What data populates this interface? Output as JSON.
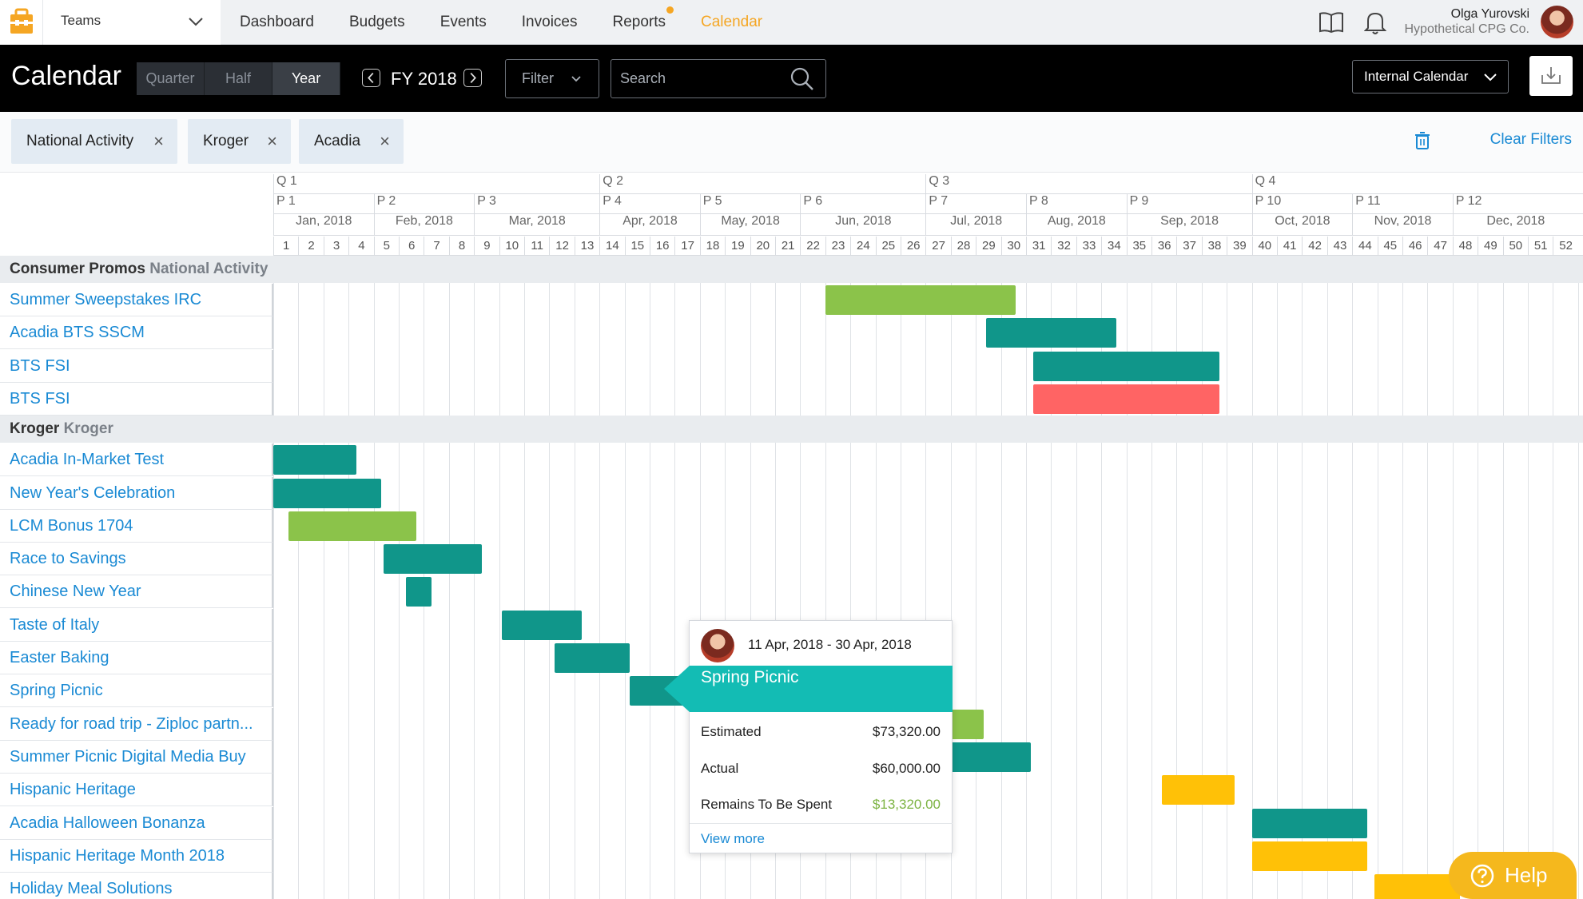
{
  "nav": {
    "teams_label": "Teams",
    "links": [
      "Dashboard",
      "Budgets",
      "Events",
      "Invoices",
      "Reports",
      "Calendar"
    ],
    "active": "Calendar",
    "user_name": "Olga Yurovski",
    "user_company": "Hypothetical CPG Co."
  },
  "header": {
    "title": "Calendar",
    "segments": [
      "Quarter",
      "Half",
      "Year"
    ],
    "active_segment": "Year",
    "fiscal_year": "FY 2018",
    "filter_label": "Filter",
    "search_placeholder": "Search",
    "calendar_select": "Internal Calendar"
  },
  "chips": [
    "National Activity",
    "Kroger",
    "Acadia"
  ],
  "clear_filters": "Clear Filters",
  "timeline": {
    "quarters": [
      "Q 1",
      "Q 2",
      "Q 3",
      "Q 4"
    ],
    "periods": [
      "P 1",
      "P 2",
      "P 3",
      "P 4",
      "P 5",
      "P 6",
      "P 7",
      "P 8",
      "P 9",
      "P 10",
      "P 11",
      "P 12"
    ],
    "months": [
      "Jan, 2018",
      "Feb, 2018",
      "Mar, 2018",
      "Apr, 2018",
      "May, 2018",
      "Jun, 2018",
      "Jul, 2018",
      "Aug, 2018",
      "Sep, 2018",
      "Oct, 2018",
      "Nov, 2018",
      "Dec, 2018"
    ],
    "weeks": 52
  },
  "sections": [
    {
      "title": "Consumer Promos",
      "subtitle": "National Activity",
      "rows": [
        {
          "label": "Summer Sweepstakes IRC",
          "bars": [
            {
              "start_week": 23,
              "end_week": 30.6,
              "color": "green"
            }
          ]
        },
        {
          "label": "Acadia BTS SSCM",
          "bars": [
            {
              "start_week": 29.4,
              "end_week": 34.6,
              "color": "teal"
            }
          ]
        },
        {
          "label": "BTS FSI",
          "bars": [
            {
              "start_week": 31.3,
              "end_week": 38.7,
              "color": "teal"
            }
          ]
        },
        {
          "label": "BTS FSI",
          "bars": [
            {
              "start_week": 31.3,
              "end_week": 38.7,
              "color": "red"
            }
          ]
        }
      ]
    },
    {
      "title": "Kroger",
      "subtitle": "Kroger",
      "rows": [
        {
          "label": "Acadia In-Market Test",
          "bars": [
            {
              "start_week": 1,
              "end_week": 4.3,
              "color": "teal"
            }
          ]
        },
        {
          "label": "New Year's Celebration",
          "bars": [
            {
              "start_week": 1,
              "end_week": 5.3,
              "color": "teal"
            }
          ]
        },
        {
          "label": "LCM Bonus 1704",
          "bars": [
            {
              "start_week": 1.6,
              "end_week": 6.7,
              "color": "green"
            }
          ]
        },
        {
          "label": "Race to Savings",
          "bars": [
            {
              "start_week": 5.4,
              "end_week": 9.3,
              "color": "teal"
            }
          ]
        },
        {
          "label": "Chinese New Year",
          "bars": [
            {
              "start_week": 6.3,
              "end_week": 7.3,
              "color": "teal"
            }
          ]
        },
        {
          "label": "Taste of Italy",
          "bars": [
            {
              "start_week": 10.1,
              "end_week": 13.3,
              "color": "teal"
            }
          ]
        },
        {
          "label": "Easter Baking",
          "bars": [
            {
              "start_week": 12.2,
              "end_week": 15.2,
              "color": "teal"
            }
          ]
        },
        {
          "label": "Spring Picnic",
          "bars": [
            {
              "start_week": 15.2,
              "end_week": 17.9,
              "color": "teal"
            }
          ]
        },
        {
          "label": "Ready for road trip - Ziploc partn...",
          "bars": [
            {
              "start_week": 18,
              "end_week": 29.3,
              "color": "green"
            }
          ]
        },
        {
          "label": "Summer Picnic Digital Media Buy",
          "bars": [
            {
              "start_week": 18,
              "end_week": 31.2,
              "color": "teal"
            }
          ]
        },
        {
          "label": "Hispanic Heritage",
          "bars": [
            {
              "start_week": 36.4,
              "end_week": 39.3,
              "color": "yellow"
            }
          ]
        },
        {
          "label": "Acadia Halloween Bonanza",
          "bars": [
            {
              "start_week": 40,
              "end_week": 44.6,
              "color": "teal"
            }
          ]
        },
        {
          "label": "Hispanic Heritage Month 2018",
          "bars": [
            {
              "start_week": 40,
              "end_week": 44.6,
              "color": "yellow"
            }
          ]
        },
        {
          "label": "Holiday Meal Solutions",
          "bars": [
            {
              "start_week": 44.9,
              "end_week": 48.3,
              "color": "yellow"
            }
          ]
        }
      ]
    }
  ],
  "popover": {
    "date_range": "11 Apr, 2018 - 30 Apr, 2018",
    "title": "Spring Picnic",
    "estimated_label": "Estimated",
    "estimated_value": "$73,320.00",
    "actual_label": "Actual",
    "actual_value": "$60,000.00",
    "remains_label": "Remains To Be Spent",
    "remains_value": "$13,320.00",
    "link": "View more"
  },
  "help_label": "Help",
  "colors": {
    "green": "#8bc34a",
    "teal": "#10968a",
    "red": "#ff6464",
    "yellow": "#ffc107",
    "accent_orange": "#f5a623",
    "link_blue": "#1a8ad4",
    "popover_teal": "#13bcb4"
  }
}
